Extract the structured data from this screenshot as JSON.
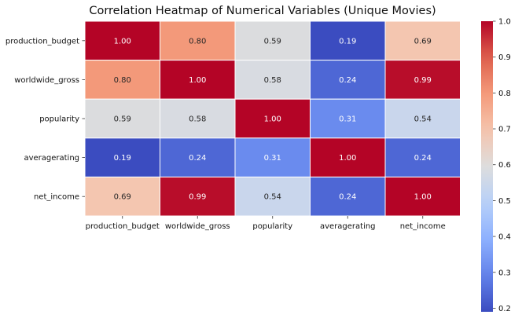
{
  "chart_data": {
    "type": "heatmap",
    "title": "Correlation Heatmap of Numerical Variables (Unique Movies)",
    "xlabel": "",
    "ylabel": "",
    "row_labels": [
      "production_budget",
      "worldwide_gross",
      "popularity",
      "averagerating",
      "net_income"
    ],
    "col_labels": [
      "production_budget",
      "worldwide_gross",
      "popularity",
      "averagerating",
      "net_income"
    ],
    "values": [
      [
        1.0,
        0.8,
        0.59,
        0.19,
        0.69
      ],
      [
        0.8,
        1.0,
        0.58,
        0.24,
        0.99
      ],
      [
        0.59,
        0.58,
        1.0,
        0.31,
        0.54
      ],
      [
        0.19,
        0.24,
        0.31,
        1.0,
        0.24
      ],
      [
        0.69,
        0.99,
        0.54,
        0.24,
        1.0
      ]
    ],
    "colorbar": {
      "colormap": "coolwarm",
      "range": [
        0.19,
        1.0
      ],
      "ticks": [
        "0.2",
        "0.3",
        "0.4",
        "0.5",
        "0.6",
        "0.7",
        "0.8",
        "0.9",
        "1.0"
      ]
    },
    "grid_lines": true,
    "grid_color": "#ffffff"
  }
}
